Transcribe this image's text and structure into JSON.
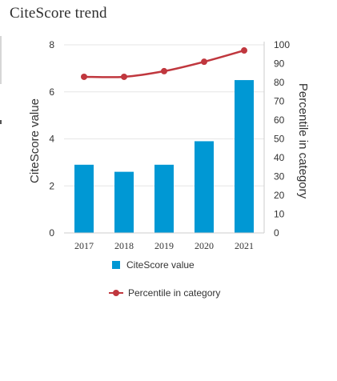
{
  "title": "CiteScore trend",
  "colors": {
    "bar": "#0098d4",
    "line": "#c0373e",
    "grid": "#e6e6e6",
    "axis": "#cccccc",
    "text": "#333333"
  },
  "chart_data": {
    "type": "bar",
    "categories": [
      "2017",
      "2018",
      "2019",
      "2020",
      "2021"
    ],
    "series": [
      {
        "name": "CiteScore value",
        "type": "bar",
        "axis": "left",
        "values": [
          2.9,
          2.6,
          2.9,
          3.9,
          6.5
        ]
      },
      {
        "name": "Percentile in category",
        "type": "line",
        "axis": "right",
        "values": [
          83,
          83,
          86,
          91,
          97
        ]
      }
    ],
    "ylabel": "CiteScore value",
    "ylabel_right": "Percentile in category",
    "ylim": [
      0,
      8
    ],
    "ylim_right": [
      0,
      100
    ],
    "yticks": [
      0,
      2,
      4,
      6,
      8
    ],
    "yticks_right": [
      0,
      10,
      20,
      30,
      40,
      50,
      60,
      70,
      80,
      90,
      100
    ],
    "grid": true,
    "legend_position": "bottom"
  }
}
